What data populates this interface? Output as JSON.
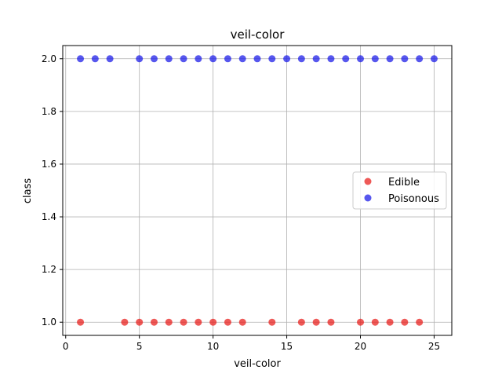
{
  "chart_data": {
    "type": "scatter",
    "title": "veil-color",
    "xlabel": "veil-color",
    "ylabel": "class",
    "xlim": [
      -0.2,
      26.2
    ],
    "ylim": [
      0.95,
      2.05
    ],
    "xticks": [
      0,
      5,
      10,
      15,
      20,
      25
    ],
    "yticks": [
      1.0,
      1.2,
      1.4,
      1.6,
      1.8,
      2.0
    ],
    "xtick_labels": [
      "0",
      "5",
      "10",
      "15",
      "20",
      "25"
    ],
    "ytick_labels": [
      "1.0",
      "1.2",
      "1.4",
      "1.6",
      "1.8",
      "2.0"
    ],
    "grid": true,
    "legend_position": "center-right",
    "series": [
      {
        "name": "Edible",
        "color": "#e8211f",
        "x": [
          1,
          4,
          5,
          6,
          7,
          8,
          9,
          10,
          11,
          12,
          14,
          16,
          17,
          18,
          20,
          21,
          22,
          23,
          24
        ],
        "y": [
          1,
          1,
          1,
          1,
          1,
          1,
          1,
          1,
          1,
          1,
          1,
          1,
          1,
          1,
          1,
          1,
          1,
          1,
          1
        ]
      },
      {
        "name": "Poisonous",
        "color": "#1f1fe8",
        "x": [
          1,
          2,
          3,
          5,
          6,
          7,
          8,
          9,
          10,
          11,
          12,
          13,
          14,
          15,
          16,
          17,
          18,
          19,
          20,
          21,
          22,
          23,
          24,
          25
        ],
        "y": [
          2,
          2,
          2,
          2,
          2,
          2,
          2,
          2,
          2,
          2,
          2,
          2,
          2,
          2,
          2,
          2,
          2,
          2,
          2,
          2,
          2,
          2,
          2,
          2
        ]
      }
    ]
  }
}
